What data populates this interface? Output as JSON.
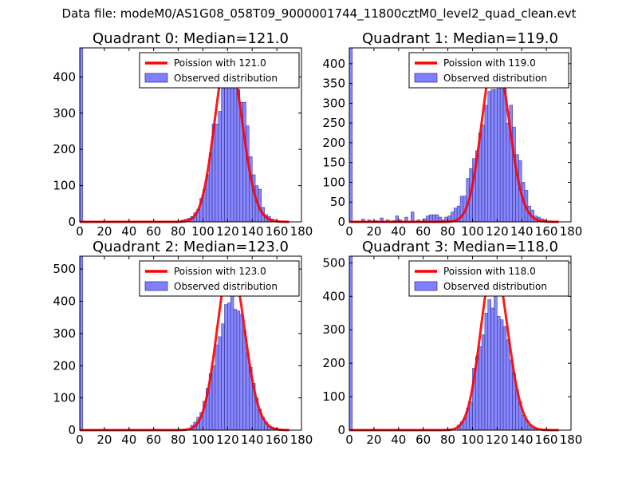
{
  "figure": {
    "suptitle": "Data file: modeM0/AS1G08_058T09_9000001744_11800cztM0_level2_quad_clean.evt"
  },
  "chart_data": [
    {
      "type": "bar",
      "title": "Quadrant 0: Median=121.0",
      "xlim": [
        0,
        180
      ],
      "ylim": [
        0,
        480
      ],
      "xticks": [
        "0",
        "20",
        "40",
        "60",
        "80",
        "100",
        "120",
        "140",
        "160",
        "180"
      ],
      "yticks": [
        "0",
        "100",
        "200",
        "300",
        "400"
      ],
      "legend": {
        "placement": "top-right",
        "line_label": "Poission with 121.0",
        "bar_label": "Observed distribution"
      },
      "median": 121.0,
      "poisson_peak": 465,
      "bin_width": 2.5,
      "bins": [
        {
          "x": 0,
          "y": 480
        },
        {
          "x": 82.5,
          "y": 5
        },
        {
          "x": 85,
          "y": 7
        },
        {
          "x": 87.5,
          "y": 10
        },
        {
          "x": 90,
          "y": 15
        },
        {
          "x": 92.5,
          "y": 25
        },
        {
          "x": 95,
          "y": 35
        },
        {
          "x": 97.5,
          "y": 65
        },
        {
          "x": 100,
          "y": 90
        },
        {
          "x": 102.5,
          "y": 130
        },
        {
          "x": 105,
          "y": 190
        },
        {
          "x": 107.5,
          "y": 270
        },
        {
          "x": 110,
          "y": 270
        },
        {
          "x": 112.5,
          "y": 305
        },
        {
          "x": 115,
          "y": 370
        },
        {
          "x": 117.5,
          "y": 400
        },
        {
          "x": 120,
          "y": 460
        },
        {
          "x": 122.5,
          "y": 460
        },
        {
          "x": 125,
          "y": 460
        },
        {
          "x": 127.5,
          "y": 365
        },
        {
          "x": 130,
          "y": 330
        },
        {
          "x": 132.5,
          "y": 330
        },
        {
          "x": 135,
          "y": 265
        },
        {
          "x": 137.5,
          "y": 180
        },
        {
          "x": 140,
          "y": 130
        },
        {
          "x": 142.5,
          "y": 100
        },
        {
          "x": 145,
          "y": 90
        },
        {
          "x": 147.5,
          "y": 40
        },
        {
          "x": 150,
          "y": 20
        },
        {
          "x": 152.5,
          "y": 15
        },
        {
          "x": 155,
          "y": 8
        },
        {
          "x": 157.5,
          "y": 5
        }
      ]
    },
    {
      "type": "bar",
      "title": "Quadrant 1: Median=119.0",
      "xlim": [
        0,
        180
      ],
      "ylim": [
        0,
        440
      ],
      "xticks": [
        "0",
        "20",
        "40",
        "60",
        "80",
        "100",
        "120",
        "140",
        "160",
        "180"
      ],
      "yticks": [
        "0",
        "50",
        "100",
        "150",
        "200",
        "250",
        "300",
        "350",
        "400"
      ],
      "legend": {
        "placement": "top-right",
        "line_label": "Poission with 119.0",
        "bar_label": "Observed distribution"
      },
      "median": 119.0,
      "poisson_peak": 425,
      "bin_width": 2.5,
      "bins": [
        {
          "x": 0,
          "y": 440
        },
        {
          "x": 10,
          "y": 7
        },
        {
          "x": 15,
          "y": 5
        },
        {
          "x": 20,
          "y": 3
        },
        {
          "x": 25,
          "y": 10
        },
        {
          "x": 30,
          "y": 5
        },
        {
          "x": 35,
          "y": 3
        },
        {
          "x": 37.5,
          "y": 15
        },
        {
          "x": 40,
          "y": 5
        },
        {
          "x": 45,
          "y": 12
        },
        {
          "x": 50,
          "y": 25
        },
        {
          "x": 55,
          "y": 5
        },
        {
          "x": 60,
          "y": 8
        },
        {
          "x": 62.5,
          "y": 15
        },
        {
          "x": 65,
          "y": 18
        },
        {
          "x": 67.5,
          "y": 18
        },
        {
          "x": 70,
          "y": 18
        },
        {
          "x": 72.5,
          "y": 12
        },
        {
          "x": 75,
          "y": 5
        },
        {
          "x": 77.5,
          "y": 12
        },
        {
          "x": 80,
          "y": 15
        },
        {
          "x": 82.5,
          "y": 25
        },
        {
          "x": 85,
          "y": 35
        },
        {
          "x": 87.5,
          "y": 40
        },
        {
          "x": 90,
          "y": 65
        },
        {
          "x": 92.5,
          "y": 65
        },
        {
          "x": 95,
          "y": 110
        },
        {
          "x": 97.5,
          "y": 135
        },
        {
          "x": 100,
          "y": 160
        },
        {
          "x": 102.5,
          "y": 180
        },
        {
          "x": 105,
          "y": 225
        },
        {
          "x": 107.5,
          "y": 245
        },
        {
          "x": 110,
          "y": 295
        },
        {
          "x": 112.5,
          "y": 330
        },
        {
          "x": 115,
          "y": 335
        },
        {
          "x": 117.5,
          "y": 335
        },
        {
          "x": 120,
          "y": 405
        },
        {
          "x": 122.5,
          "y": 360
        },
        {
          "x": 125,
          "y": 345
        },
        {
          "x": 127.5,
          "y": 250
        },
        {
          "x": 130,
          "y": 295
        },
        {
          "x": 132.5,
          "y": 240
        },
        {
          "x": 135,
          "y": 170
        },
        {
          "x": 137.5,
          "y": 155
        },
        {
          "x": 140,
          "y": 100
        },
        {
          "x": 142.5,
          "y": 80
        },
        {
          "x": 145,
          "y": 40
        },
        {
          "x": 147.5,
          "y": 30
        },
        {
          "x": 150,
          "y": 15
        },
        {
          "x": 152.5,
          "y": 12
        },
        {
          "x": 155,
          "y": 8
        },
        {
          "x": 157.5,
          "y": 5
        }
      ]
    },
    {
      "type": "bar",
      "title": "Quadrant 2: Median=123.0",
      "xlim": [
        0,
        180
      ],
      "ylim": [
        0,
        540
      ],
      "xticks": [
        "0",
        "20",
        "40",
        "60",
        "80",
        "100",
        "120",
        "140",
        "160",
        "180"
      ],
      "yticks": [
        "0",
        "100",
        "200",
        "300",
        "400",
        "500"
      ],
      "legend": {
        "placement": "top-right",
        "line_label": "Poission with 123.0",
        "bar_label": "Observed distribution"
      },
      "median": 123.0,
      "poisson_peak": 520,
      "bin_width": 2.5,
      "bins": [
        {
          "x": 0,
          "y": 540
        },
        {
          "x": 90,
          "y": 15
        },
        {
          "x": 92.5,
          "y": 25
        },
        {
          "x": 95,
          "y": 40
        },
        {
          "x": 97.5,
          "y": 55
        },
        {
          "x": 100,
          "y": 90
        },
        {
          "x": 102.5,
          "y": 130
        },
        {
          "x": 105,
          "y": 175
        },
        {
          "x": 107.5,
          "y": 200
        },
        {
          "x": 110,
          "y": 265
        },
        {
          "x": 112.5,
          "y": 290
        },
        {
          "x": 115,
          "y": 330
        },
        {
          "x": 117.5,
          "y": 390
        },
        {
          "x": 120,
          "y": 395
        },
        {
          "x": 122.5,
          "y": 510
        },
        {
          "x": 125,
          "y": 375
        },
        {
          "x": 127.5,
          "y": 370
        },
        {
          "x": 130,
          "y": 360
        },
        {
          "x": 132.5,
          "y": 310
        },
        {
          "x": 135,
          "y": 240
        },
        {
          "x": 137.5,
          "y": 195
        },
        {
          "x": 140,
          "y": 145
        },
        {
          "x": 142.5,
          "y": 100
        },
        {
          "x": 145,
          "y": 65
        },
        {
          "x": 147.5,
          "y": 40
        },
        {
          "x": 150,
          "y": 25
        },
        {
          "x": 152.5,
          "y": 12
        },
        {
          "x": 155,
          "y": 8
        },
        {
          "x": 157.5,
          "y": 5
        }
      ]
    },
    {
      "type": "bar",
      "title": "Quadrant 3: Median=118.0",
      "xlim": [
        0,
        180
      ],
      "ylim": [
        0,
        520
      ],
      "xticks": [
        "0",
        "20",
        "40",
        "60",
        "80",
        "100",
        "120",
        "140",
        "160",
        "180"
      ],
      "yticks": [
        "0",
        "100",
        "200",
        "300",
        "400",
        "500"
      ],
      "legend": {
        "placement": "top-right",
        "line_label": "Poission with 118.0",
        "bar_label": "Observed distribution"
      },
      "median": 118.0,
      "poisson_peak": 500,
      "bin_width": 2.5,
      "bins": [
        {
          "x": 0,
          "y": 520
        },
        {
          "x": 87.5,
          "y": 15
        },
        {
          "x": 90,
          "y": 25
        },
        {
          "x": 92.5,
          "y": 35
        },
        {
          "x": 95,
          "y": 65
        },
        {
          "x": 97.5,
          "y": 85
        },
        {
          "x": 100,
          "y": 185
        },
        {
          "x": 102.5,
          "y": 220
        },
        {
          "x": 105,
          "y": 250
        },
        {
          "x": 107.5,
          "y": 285
        },
        {
          "x": 110,
          "y": 350
        },
        {
          "x": 112.5,
          "y": 390
        },
        {
          "x": 115,
          "y": 365
        },
        {
          "x": 117.5,
          "y": 420
        },
        {
          "x": 120,
          "y": 340
        },
        {
          "x": 122.5,
          "y": 330
        },
        {
          "x": 125,
          "y": 310
        },
        {
          "x": 127.5,
          "y": 270
        },
        {
          "x": 130,
          "y": 210
        },
        {
          "x": 132.5,
          "y": 170
        },
        {
          "x": 135,
          "y": 120
        },
        {
          "x": 137.5,
          "y": 85
        },
        {
          "x": 140,
          "y": 45
        },
        {
          "x": 142.5,
          "y": 30
        },
        {
          "x": 145,
          "y": 15
        },
        {
          "x": 147.5,
          "y": 8
        },
        {
          "x": 150,
          "y": 5
        }
      ]
    }
  ]
}
